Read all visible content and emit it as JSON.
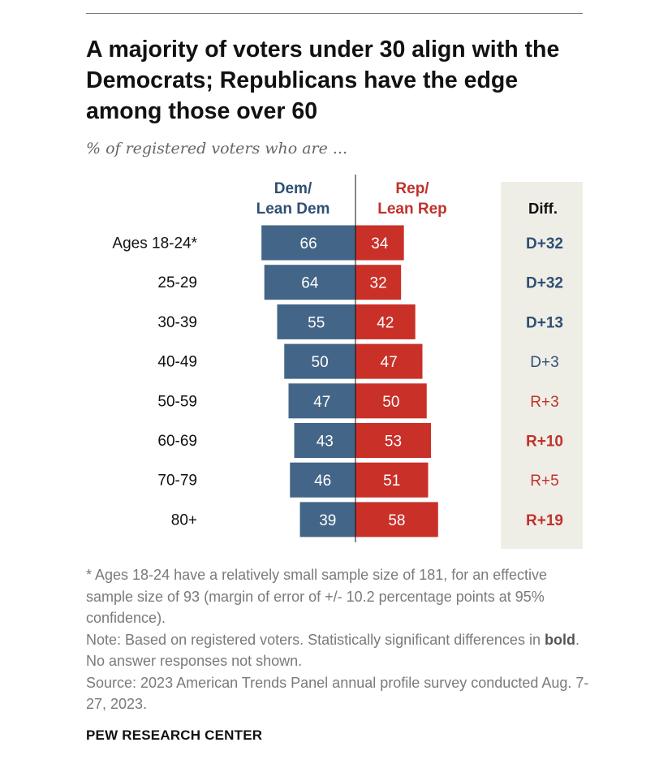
{
  "title": "A majority of voters under 30 align with the Democrats; Republicans have the edge among those over 60",
  "subtitle": "% of registered voters who are ...",
  "chart_data": {
    "type": "bar",
    "orientation": "diverging-horizontal",
    "categories": [
      "Ages 18-24*",
      "25-29",
      "30-39",
      "40-49",
      "50-59",
      "60-69",
      "70-79",
      "80+"
    ],
    "series": [
      {
        "name": "Dem/\nLean Dem",
        "color": "#436587",
        "values": [
          66,
          64,
          55,
          50,
          47,
          43,
          46,
          39
        ]
      },
      {
        "name": "Rep/\nLean Rep",
        "color": "#c93028",
        "values": [
          34,
          32,
          42,
          47,
          50,
          53,
          51,
          58
        ]
      }
    ],
    "diff": {
      "header": "Diff.",
      "values": [
        "D+32",
        "D+32",
        "D+13",
        "D+3",
        "R+3",
        "R+10",
        "R+5",
        "R+19"
      ],
      "bold": [
        true,
        true,
        true,
        false,
        false,
        true,
        false,
        true
      ],
      "party": [
        "D",
        "D",
        "D",
        "D",
        "R",
        "R",
        "R",
        "R"
      ]
    },
    "colors": {
      "dem": "#436587",
      "rep": "#c93028",
      "dem_text": "#2f4f74",
      "rep_text": "#c0322b",
      "diff_panel": "#efeee6"
    }
  },
  "notes": {
    "footnote": "* Ages 18-24 have a relatively small sample size of 181, for an effective sample size of 93 (margin of error of +/- 10.2 percentage points at 95% confidence).",
    "note_before_bold": "Note: Based on registered voters. Statistically significant differences in ",
    "note_bold": "bold",
    "note_after_bold": ". No answer responses not shown.",
    "source": "Source: 2023 American Trends Panel annual profile survey conducted Aug. 7-27, 2023."
  },
  "brand": "PEW RESEARCH CENTER"
}
